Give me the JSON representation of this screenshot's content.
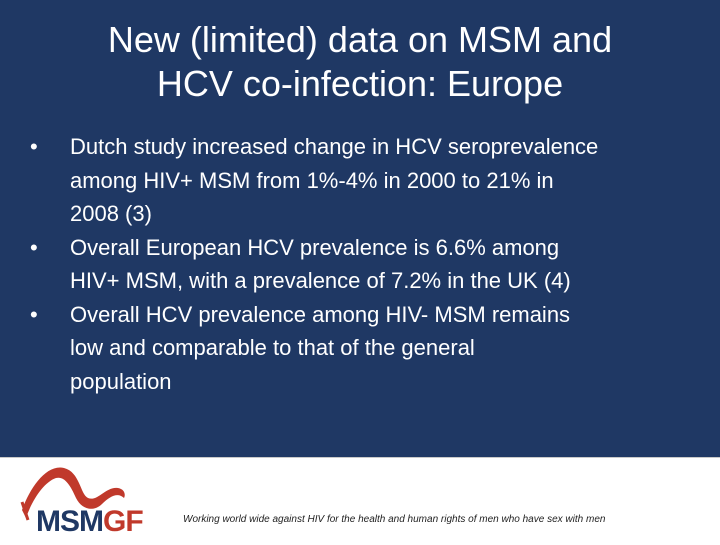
{
  "title": {
    "line1": "New (limited) data on MSM and",
    "line2": "HCV co-infection: Europe"
  },
  "bullets": [
    {
      "marker": "•",
      "lines": [
        "Dutch study increased change in HCV seroprevalence",
        "among HIV+ MSM from 1%-4% in 2000 to 21% in",
        "2008 (3)"
      ]
    },
    {
      "marker": "•",
      "lines": [
        "Overall European HCV prevalence is 6.6% among",
        "HIV+ MSM, with a prevalence of 7.2% in the UK (4)"
      ]
    },
    {
      "marker": "•",
      "lines": [
        "Overall HCV prevalence among HIV- MSM remains",
        "low and comparable to that of the general",
        "population"
      ]
    }
  ],
  "footer": {
    "logo": {
      "part1": "MSM",
      "part2": "GF"
    },
    "tagline": "Working world wide against HIV for the health and human rights of men who have sex with men"
  },
  "colors": {
    "background": "#1f3864",
    "logo_blue": "#1f3864",
    "logo_red": "#c0392b"
  }
}
